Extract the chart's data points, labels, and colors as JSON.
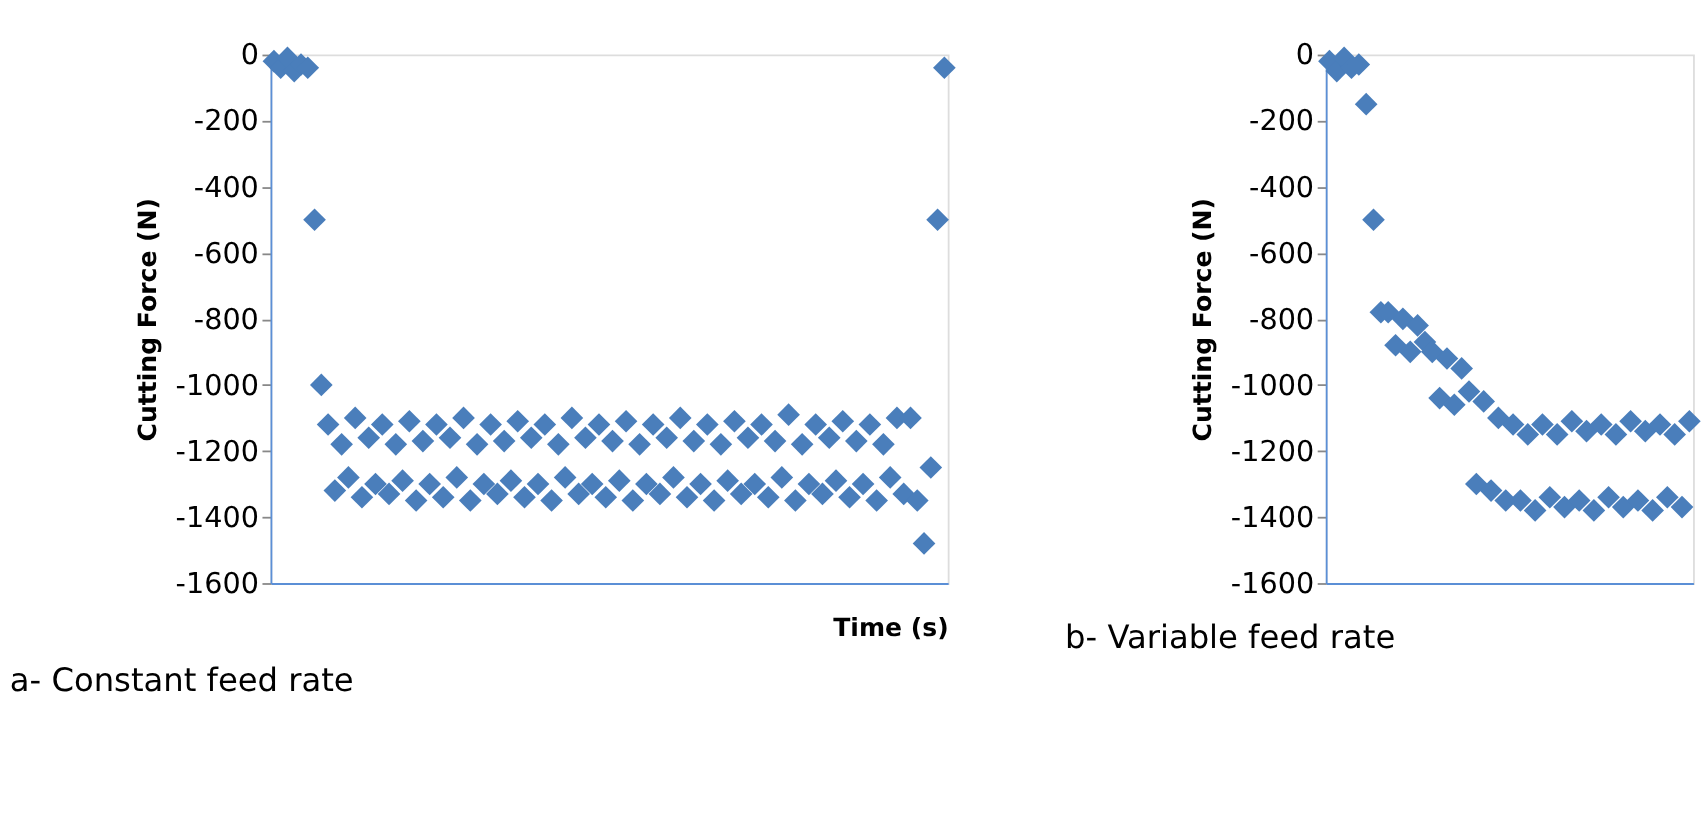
{
  "chart_data": [
    {
      "type": "scatter",
      "title": "a- Constant feed rate",
      "xlabel": "Time (s)",
      "ylabel": "Cutting Force (N)",
      "categories": [
        null,
        null,
        null,
        null,
        null,
        null,
        null,
        null,
        null,
        null,
        null,
        null,
        null,
        null,
        null,
        null,
        null,
        null,
        null,
        null,
        null,
        null,
        null,
        null,
        null,
        null,
        null,
        null,
        null,
        null,
        null,
        null,
        null,
        null,
        null,
        null,
        null,
        null,
        null,
        null,
        null,
        null,
        null,
        null,
        null,
        null,
        null,
        null,
        null,
        null,
        null,
        null,
        null,
        null,
        null,
        null,
        null,
        null,
        null,
        null,
        null,
        null,
        null,
        null,
        null,
        null,
        null,
        null,
        null,
        null,
        null,
        null,
        null,
        null,
        null,
        null,
        null,
        null,
        null,
        null,
        null,
        null,
        null,
        null,
        null,
        null,
        null,
        null,
        null,
        null,
        null,
        null,
        null,
        null,
        null,
        null,
        null,
        null,
        null,
        null
      ],
      "series": [
        {
          "color": "#4a7ebb",
          "values": [
            -20,
            -40,
            -10,
            -50,
            -30,
            -40,
            -500,
            -1000,
            -1120,
            -1320,
            -1180,
            -1280,
            -1100,
            -1340,
            -1160,
            -1300,
            -1120,
            -1330,
            -1180,
            -1290,
            -1110,
            -1350,
            -1170,
            -1300,
            -1120,
            -1340,
            -1160,
            -1280,
            -1100,
            -1350,
            -1180,
            -1300,
            -1120,
            -1330,
            -1170,
            -1290,
            -1110,
            -1340,
            -1160,
            -1300,
            -1120,
            -1350,
            -1180,
            -1280,
            -1100,
            -1330,
            -1160,
            -1300,
            -1120,
            -1340,
            -1170,
            -1290,
            -1110,
            -1350,
            -1180,
            -1300,
            -1120,
            -1330,
            -1160,
            -1280,
            -1100,
            -1340,
            -1170,
            -1300,
            -1120,
            -1350,
            -1180,
            -1290,
            -1110,
            -1330,
            -1160,
            -1300,
            -1120,
            -1340,
            -1170,
            -1280,
            -1090,
            -1350,
            -1180,
            -1300,
            -1120,
            -1330,
            -1160,
            -1290,
            -1110,
            -1340,
            -1170,
            -1300,
            -1120,
            -1350,
            -1180,
            -1280,
            -1100,
            -1330,
            -1100,
            -1350,
            -1480,
            -1250,
            -500,
            -40
          ]
        }
      ],
      "ylim": [
        -1600,
        0
      ],
      "yticks": [
        0,
        -200,
        -400,
        -600,
        -800,
        -1000,
        -1200,
        -1400,
        -1600
      ],
      "tick_labels": "y",
      "grid": false,
      "marker": "diamond"
    },
    {
      "type": "scatter",
      "title": "b- Variable feed rate",
      "ylabel": "Cutting Force (N)",
      "categories": [
        null,
        null,
        null,
        null,
        null,
        null,
        null,
        null,
        null,
        null,
        null,
        null,
        null,
        null,
        null,
        null,
        null,
        null,
        null,
        null,
        null,
        null,
        null,
        null,
        null,
        null,
        null,
        null,
        null,
        null,
        null,
        null,
        null,
        null,
        null,
        null,
        null,
        null,
        null,
        null,
        null,
        null,
        null,
        null,
        null,
        null,
        null,
        null,
        null,
        null
      ],
      "series": [
        {
          "color": "#4a7ebb",
          "values": [
            -20,
            -50,
            -10,
            -40,
            -30,
            -150,
            -500,
            -780,
            -780,
            -880,
            -800,
            -900,
            -820,
            -870,
            -900,
            -1040,
            -920,
            -1060,
            -950,
            -1020,
            -1300,
            -1050,
            -1320,
            -1100,
            -1350,
            -1120,
            -1350,
            -1150,
            -1380,
            -1120,
            -1340,
            -1150,
            -1370,
            -1110,
            -1350,
            -1140,
            -1380,
            -1120,
            -1340,
            -1150,
            -1370,
            -1110,
            -1350,
            -1140,
            -1380,
            -1120,
            -1340,
            -1150,
            -1370,
            -1110
          ]
        }
      ],
      "ylim": [
        -1600,
        0
      ],
      "yticks": [
        0,
        -200,
        -400,
        -600,
        -800,
        -1000,
        -1200,
        -1400,
        -1600
      ],
      "tick_labels": "y",
      "grid": false,
      "marker": "diamond"
    }
  ]
}
